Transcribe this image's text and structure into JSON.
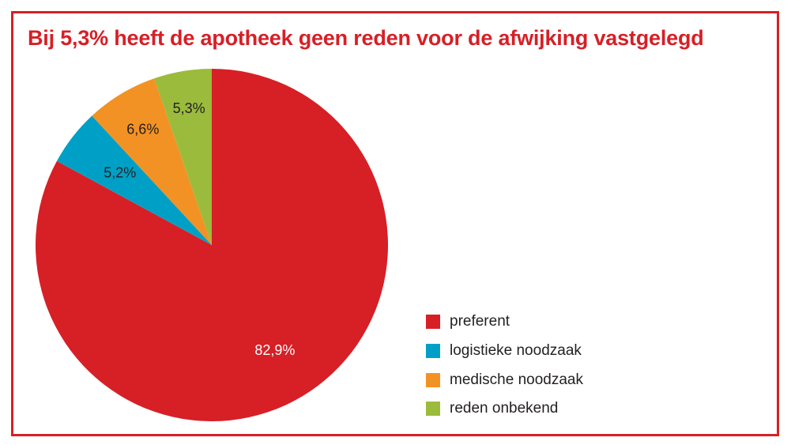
{
  "chart_data": {
    "type": "pie",
    "title": "Bij 5,3% heeft de apotheek geen reden voor de afwijking vastgelegd",
    "slices": [
      {
        "name": "preferent",
        "value": 82.9,
        "label": "82,9%",
        "color": "#d71f26",
        "label_color": "#ffffff"
      },
      {
        "name": "logistieke noodzaak",
        "value": 5.2,
        "label": "5,2%",
        "color": "#00a0c6",
        "label_color": "#231f20"
      },
      {
        "name": "medische noodzaak",
        "value": 6.6,
        "label": "6,6%",
        "color": "#f39224",
        "label_color": "#231f20"
      },
      {
        "name": "reden onbekend",
        "value": 5.3,
        "label": "5,3%",
        "color": "#9bbb3c",
        "label_color": "#231f20"
      }
    ],
    "legend_position": "bottom-right"
  },
  "colors": {
    "accent": "#d71f26",
    "frame": "#d71f26"
  }
}
